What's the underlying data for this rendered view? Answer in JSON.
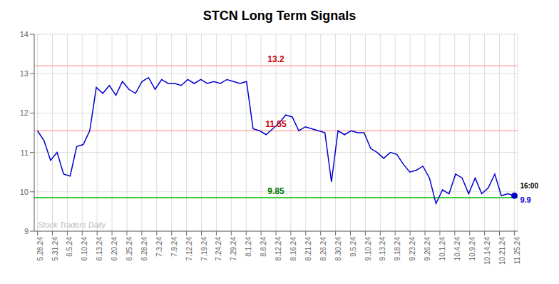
{
  "chart_data": {
    "type": "line",
    "title": "STCN Long Term Signals",
    "x": [
      0,
      1,
      2,
      3,
      4,
      5,
      6,
      7,
      8,
      9,
      10,
      11,
      12,
      13,
      14,
      15,
      16,
      17,
      18,
      19,
      20,
      21,
      22,
      23,
      24,
      25,
      26,
      27,
      28,
      29,
      30,
      31,
      32,
      33,
      34,
      35,
      36,
      37,
      38,
      39,
      40,
      41,
      42,
      43,
      44,
      45,
      46,
      47,
      48,
      49,
      50,
      51,
      52,
      53,
      54,
      55,
      56,
      57,
      58,
      59,
      60,
      61,
      62,
      63,
      64,
      65,
      66,
      67,
      68,
      69,
      70,
      71,
      72,
      73
    ],
    "values": [
      11.55,
      11.3,
      10.8,
      11.0,
      10.45,
      10.4,
      11.15,
      11.2,
      11.55,
      12.65,
      12.5,
      12.7,
      12.45,
      12.8,
      12.6,
      12.5,
      12.8,
      12.9,
      12.6,
      12.85,
      12.75,
      12.75,
      12.7,
      12.85,
      12.75,
      12.85,
      12.75,
      12.8,
      12.75,
      12.85,
      12.8,
      12.75,
      12.8,
      11.6,
      11.55,
      11.45,
      11.6,
      11.75,
      11.95,
      11.9,
      11.55,
      11.65,
      11.6,
      11.55,
      11.5,
      10.25,
      11.55,
      11.45,
      11.55,
      11.5,
      11.5,
      11.1,
      11.0,
      10.85,
      11.0,
      10.95,
      10.7,
      10.5,
      10.55,
      10.65,
      10.35,
      9.7,
      10.05,
      9.95,
      10.45,
      10.35,
      9.95,
      10.35,
      9.95,
      10.1,
      10.45,
      9.9,
      9.95,
      9.9
    ],
    "color": "#0000cc",
    "xlim": [
      -0.5,
      73.5
    ],
    "xticks": [
      {
        "value": 0,
        "label": "5.28.24"
      },
      {
        "value": 2.28125,
        "label": "5.31.24"
      },
      {
        "value": 4.5625,
        "label": "6.5.24"
      },
      {
        "value": 6.84375,
        "label": "6.10.24"
      },
      {
        "value": 9.125,
        "label": "6.13.24"
      },
      {
        "value": 11.40625,
        "label": "6.20.24"
      },
      {
        "value": 13.6875,
        "label": "6.25.24"
      },
      {
        "value": 15.96875,
        "label": "6.28.24"
      },
      {
        "value": 18.25,
        "label": "7.3.24"
      },
      {
        "value": 20.53125,
        "label": "7.9.24"
      },
      {
        "value": 22.8125,
        "label": "7.12.24"
      },
      {
        "value": 25.09375,
        "label": "7.19.24"
      },
      {
        "value": 27.375,
        "label": "7.24.24"
      },
      {
        "value": 29.65625,
        "label": "7.29.24"
      },
      {
        "value": 31.9375,
        "label": "8.1.24"
      },
      {
        "value": 34.21875,
        "label": "8.6.24"
      },
      {
        "value": 36.5,
        "label": "8.12.24"
      },
      {
        "value": 38.78125,
        "label": "8.16.24"
      },
      {
        "value": 41.0625,
        "label": "8.21.24"
      },
      {
        "value": 43.34375,
        "label": "8.26.24"
      },
      {
        "value": 45.625,
        "label": "8.30.24"
      },
      {
        "value": 47.90625,
        "label": "9.5.24"
      },
      {
        "value": 50.1875,
        "label": "9.10.24"
      },
      {
        "value": 52.46875,
        "label": "9.13.24"
      },
      {
        "value": 54.75,
        "label": "9.18.24"
      },
      {
        "value": 57.03125,
        "label": "9.23.24"
      },
      {
        "value": 59.3125,
        "label": "9.26.24"
      },
      {
        "value": 61.59375,
        "label": "10.1.24"
      },
      {
        "value": 63.875,
        "label": "10.4.24"
      },
      {
        "value": 66.15625,
        "label": "10.9.24"
      },
      {
        "value": 68.4375,
        "label": "10.14.24"
      },
      {
        "value": 70.71875,
        "label": "10.21.24"
      },
      {
        "value": 73,
        "label": "11.25.24"
      }
    ],
    "ylim": [
      9,
      14
    ],
    "yticks": [
      9,
      10,
      11,
      12,
      13,
      14
    ],
    "grid": true,
    "reference_lines": [
      {
        "y": 13.2,
        "color": "#ffaaaa",
        "label": "13.2",
        "label_color": "#cc0000"
      },
      {
        "y": 11.55,
        "color": "#ffaaaa",
        "label": "11.55",
        "label_color": "#cc0000"
      },
      {
        "y": 9.85,
        "color": "#00bb00",
        "label": "9.85",
        "label_color": "#007700"
      }
    ],
    "annotations": [
      {
        "text": "16:00",
        "color": "#000000"
      },
      {
        "text": "9.9",
        "color": "#0000cc"
      }
    ],
    "watermark": "Stock Traders Daily",
    "watermark_color": "#bbbbbb"
  }
}
